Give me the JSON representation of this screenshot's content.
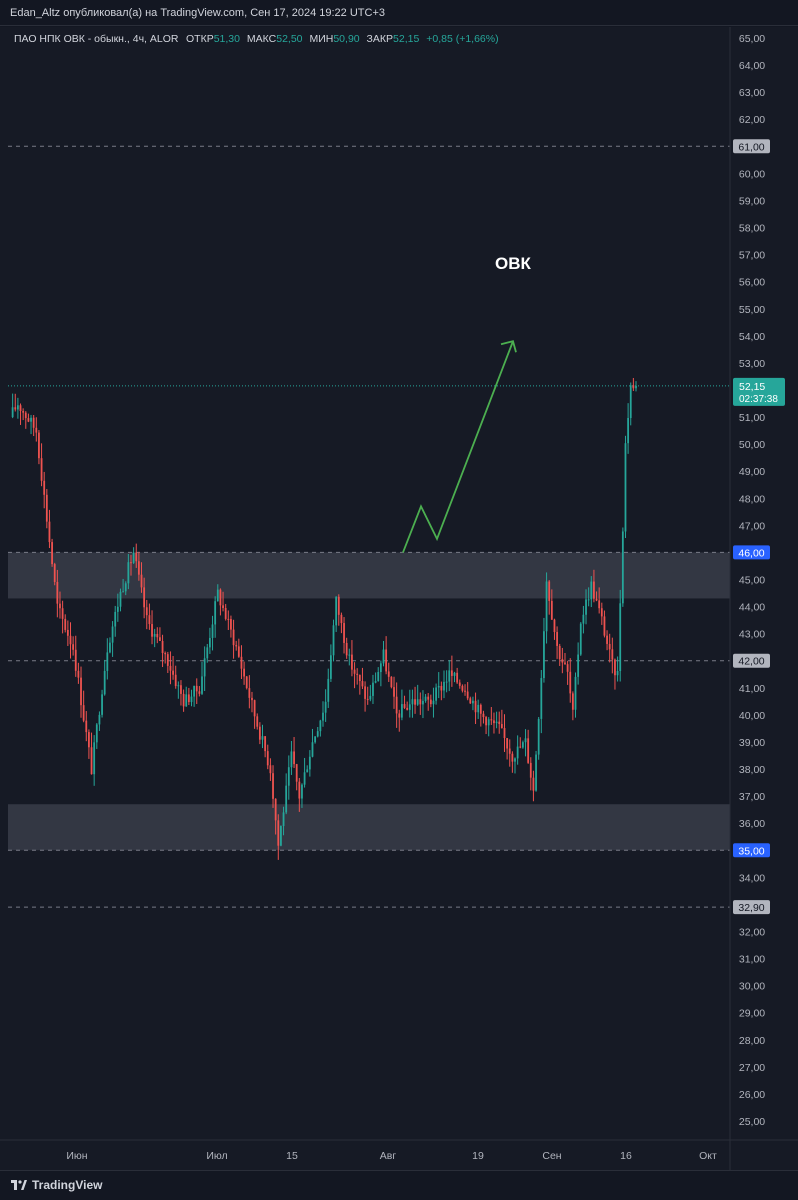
{
  "publisher_line": "Edan_Altz опубликовал(а) на TradingView.com, Сен 17, 2024 19:22 UTC+3",
  "legend": {
    "symbol": "ПАО НПК ОВК - обыкн., 4ч, ALOR",
    "open_label": "ОТКР",
    "open_value": "51,30",
    "high_label": "МАКС",
    "high_value": "52,50",
    "low_label": "МИН",
    "low_value": "50,90",
    "close_label": "ЗАКР",
    "close_value": "52,15",
    "change": "+0,85 (+1,66%)"
  },
  "annotation_text": "ОВК",
  "footer": {
    "brand": "TradingView"
  },
  "colors": {
    "up": "#26a69a",
    "down": "#ef5350",
    "zone": "#363a45",
    "arrow": "#4caf50",
    "last_price_bg": "#26a69a",
    "blue_label_bg": "#2962ff",
    "gray_label_bg": "#b2b5be"
  },
  "chart_data": {
    "type": "candlestick",
    "timeframe": "4ч",
    "y_axis": {
      "min": 24,
      "max": 66,
      "ticks": [
        "65,00",
        "64,00",
        "63,00",
        "62,00",
        "61,00",
        "60,00",
        "59,00",
        "58,00",
        "57,00",
        "56,00",
        "55,00",
        "54,00",
        "53,00",
        "52,00",
        "51,00",
        "50,00",
        "49,00",
        "48,00",
        "47,00",
        "46,00",
        "45,00",
        "44,00",
        "43,00",
        "42,00",
        "41,00",
        "40,00",
        "39,00",
        "38,00",
        "37,00",
        "36,00",
        "35,00",
        "34,00",
        "33,00",
        "32,00",
        "31,00",
        "30,00",
        "29,00",
        "28,00",
        "27,00",
        "26,00",
        "25,00"
      ]
    },
    "x_axis": {
      "ticks": [
        "Июн",
        "Июл",
        "15",
        "Авг",
        "19",
        "Сен",
        "16",
        "Окт"
      ]
    },
    "price_path": [
      [
        0,
        51.0
      ],
      [
        3,
        51.5
      ],
      [
        10,
        50.5
      ],
      [
        18,
        44.0
      ],
      [
        24,
        42.5
      ],
      [
        31,
        38.0
      ],
      [
        37,
        42.5
      ],
      [
        42,
        44.5
      ],
      [
        47,
        46.0
      ],
      [
        52,
        43.5
      ],
      [
        60,
        42.0
      ],
      [
        66,
        40.5
      ],
      [
        72,
        41.0
      ],
      [
        79,
        44.5
      ],
      [
        86,
        42.5
      ],
      [
        93,
        40.0
      ],
      [
        99,
        38.0
      ],
      [
        102,
        35.2
      ],
      [
        107,
        38.5
      ],
      [
        110,
        37.0
      ],
      [
        115,
        39.0
      ],
      [
        120,
        40.5
      ],
      [
        124,
        44.2
      ],
      [
        129,
        42.0
      ],
      [
        136,
        40.5
      ],
      [
        142,
        42.2
      ],
      [
        147,
        40.0
      ],
      [
        153,
        40.5
      ],
      [
        160,
        40.5
      ],
      [
        167,
        41.5
      ],
      [
        173,
        41.0
      ],
      [
        179,
        40.0
      ],
      [
        186,
        39.5
      ],
      [
        191,
        38.5
      ],
      [
        196,
        39.0
      ],
      [
        199,
        37.2
      ],
      [
        202,
        41.5
      ],
      [
        204,
        45.0
      ],
      [
        208,
        42.5
      ],
      [
        212,
        41.5
      ],
      [
        214,
        40.0
      ],
      [
        217,
        43.5
      ],
      [
        221,
        44.8
      ],
      [
        225,
        43.5
      ],
      [
        229,
        41.8
      ],
      [
        231,
        41.5
      ],
      [
        233,
        47.0
      ],
      [
        234,
        50.0
      ],
      [
        236,
        52.2
      ],
      [
        238,
        51.8
      ]
    ],
    "price_lines": [
      {
        "value": 61.0,
        "label": "61,00",
        "style": "dashed"
      },
      {
        "value": 46.0,
        "label": "46,00",
        "style": "dashed"
      },
      {
        "value": 42.0,
        "label": "42,00",
        "style": "dashed"
      },
      {
        "value": 35.0,
        "label": "35,00",
        "style": "dashed"
      },
      {
        "value": 32.9,
        "label": "32,90",
        "style": "dashed"
      }
    ],
    "zones": [
      {
        "from": 44.3,
        "to": 46.0
      },
      {
        "from": 35.0,
        "to": 36.7
      }
    ],
    "last_price": {
      "value": 52.15,
      "label": "52,15",
      "countdown": "02:37:38"
    },
    "annotation": {
      "text": "ОВК",
      "arrow_path_prices": [
        46.0,
        47.7,
        46.5,
        53.8
      ]
    }
  }
}
